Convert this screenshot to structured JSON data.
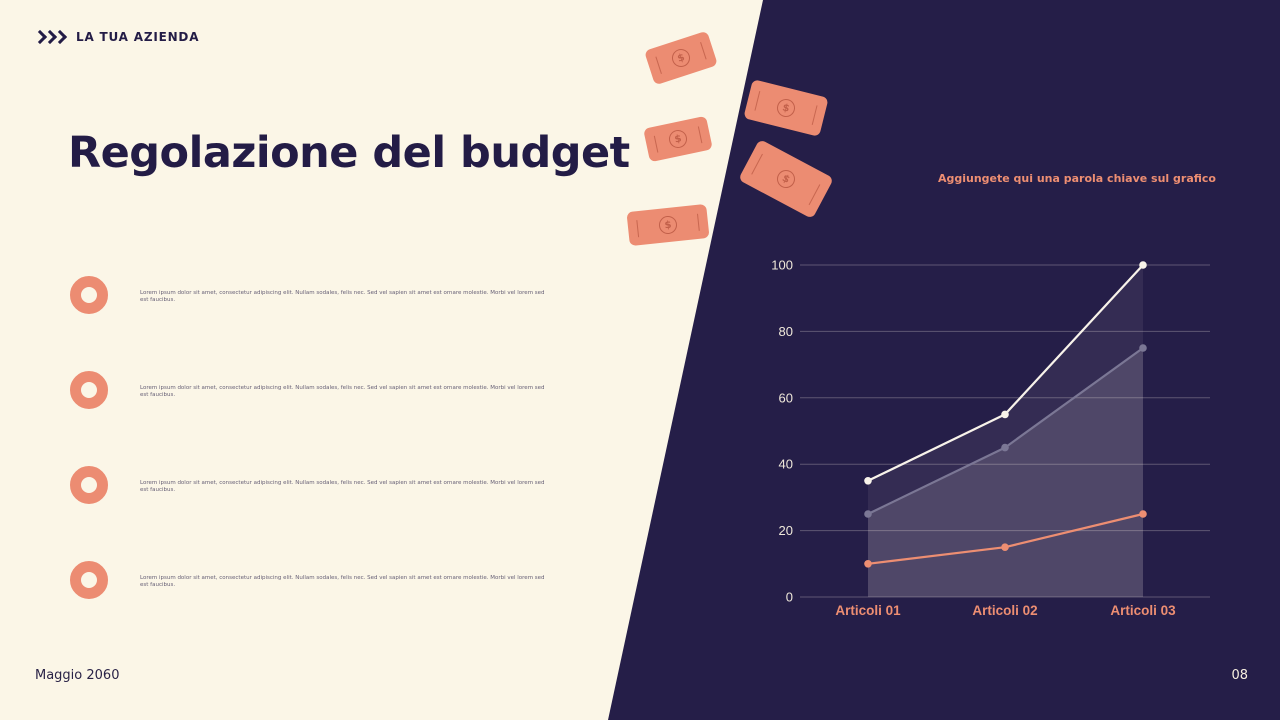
{
  "brand": {
    "name": "LA TUA AZIENDA"
  },
  "title": "Regolazione del budget",
  "list": {
    "items": [
      {
        "text": "Lorem ipsum dolor sit amet, consectetur adipiscing elit. Nullam sodales, felis nec. Sed vel sapien sit amet est ornare molestie. Morbi vel lorem sed est faucibus."
      },
      {
        "text": "Lorem ipsum dolor sit amet, consectetur adipiscing elit. Nullam sodales, felis nec. Sed vel sapien sit amet est ornare molestie. Morbi vel lorem sed est faucibus."
      },
      {
        "text": "Lorem ipsum dolor sit amet, consectetur adipiscing elit. Nullam sodales, felis nec. Sed vel sapien sit amet est ornare molestie. Morbi vel lorem sed est faucibus."
      },
      {
        "text": "Lorem ipsum dolor sit amet, consectetur adipiscing elit. Nullam sodales, felis nec. Sed vel sapien sit amet est ornare molestie. Morbi vel lorem sed est faucibus."
      }
    ]
  },
  "decor": {
    "dollar": "$"
  },
  "chart_note": "Aggiungete qui una parola chiave sul grafico",
  "chart_data": {
    "type": "line",
    "categories": [
      "Articoli 01",
      "Articoli 02",
      "Articoli 03"
    ],
    "series": [
      {
        "name": "series-1",
        "color": "#F8F3EA",
        "values": [
          35,
          55,
          100
        ],
        "fill_opacity": 0.07
      },
      {
        "name": "series-2",
        "color": "#7B7795",
        "values": [
          25,
          45,
          75
        ],
        "fill_opacity": 0.14
      },
      {
        "name": "series-3",
        "color": "#ED8E72",
        "values": [
          10,
          15,
          25
        ],
        "fill_opacity": 0
      }
    ],
    "ylim": [
      0,
      100
    ],
    "yticks": [
      0,
      20,
      40,
      60,
      80,
      100
    ],
    "grid": true,
    "legend": "none",
    "colors": {
      "grid": "rgba(244,238,227,0.28)",
      "tick_label": "#EFE8DA",
      "x_label": "#ED8E72"
    }
  },
  "footer": {
    "date": "Maggio 2060",
    "page": "08"
  }
}
